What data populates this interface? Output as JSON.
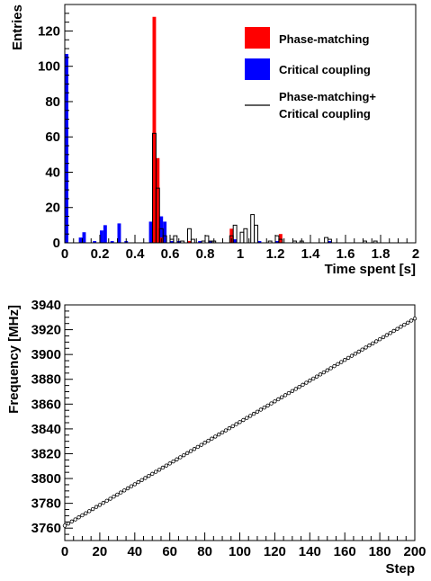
{
  "chart_data": [
    {
      "type": "bar",
      "xlabel": "Time spent [s]",
      "ylabel": "Entries",
      "xlim": [
        0,
        2
      ],
      "ylim": [
        0,
        135
      ],
      "xticks": [
        "0",
        "0.2",
        "0.4",
        "0.6",
        "0.8",
        "1",
        "1.2",
        "1.4",
        "1.6",
        "1.8",
        "2"
      ],
      "yticks": [
        "0",
        "20",
        "40",
        "60",
        "80",
        "100",
        "120"
      ],
      "legend_position": "top-right",
      "bin_width": 0.02,
      "series": [
        {
          "name": "Phase-matching",
          "style": "filled",
          "color": "#ff0000",
          "points": [
            [
              0.5,
              128
            ],
            [
              0.52,
              48
            ],
            [
              0.54,
              3
            ],
            [
              0.7,
              1
            ],
            [
              0.94,
              8
            ],
            [
              1.22,
              5
            ]
          ]
        },
        {
          "name": "Critical coupling",
          "style": "filled",
          "color": "#0000ff",
          "points": [
            [
              0.0,
              107
            ],
            [
              0.08,
              3
            ],
            [
              0.1,
              6
            ],
            [
              0.16,
              1
            ],
            [
              0.2,
              7
            ],
            [
              0.22,
              10
            ],
            [
              0.26,
              1
            ],
            [
              0.3,
              11
            ],
            [
              0.34,
              1
            ],
            [
              0.48,
              12
            ],
            [
              0.5,
              4
            ],
            [
              0.54,
              15
            ],
            [
              0.56,
              12
            ],
            [
              0.6,
              1
            ],
            [
              0.64,
              1
            ],
            [
              0.76,
              1
            ],
            [
              0.82,
              1
            ],
            [
              0.96,
              2
            ],
            [
              1.1,
              1
            ],
            [
              1.2,
              1
            ],
            [
              1.5,
              1
            ]
          ]
        },
        {
          "name": "Phase-matching+\nCritical coupling",
          "legend_lines": [
            "Phase-matching+",
            "Critical coupling"
          ],
          "style": "outline",
          "color": "#000000",
          "points": [
            [
              0.5,
              62
            ],
            [
              0.52,
              31
            ],
            [
              0.54,
              8
            ],
            [
              0.56,
              4
            ],
            [
              0.6,
              2
            ],
            [
              0.62,
              4
            ],
            [
              0.66,
              1
            ],
            [
              0.7,
              8
            ],
            [
              0.72,
              2
            ],
            [
              0.78,
              1
            ],
            [
              0.8,
              4
            ],
            [
              0.82,
              1
            ],
            [
              0.84,
              1
            ],
            [
              0.94,
              4
            ],
            [
              0.96,
              10
            ],
            [
              1.0,
              6
            ],
            [
              1.02,
              8
            ],
            [
              1.06,
              16
            ],
            [
              1.08,
              10
            ],
            [
              1.16,
              1
            ],
            [
              1.2,
              4
            ],
            [
              1.22,
              2
            ],
            [
              1.3,
              1
            ],
            [
              1.34,
              1
            ],
            [
              1.48,
              3
            ],
            [
              1.5,
              2
            ],
            [
              1.7,
              1
            ],
            [
              1.76,
              1
            ]
          ]
        }
      ]
    },
    {
      "type": "scatter",
      "xlabel": "Step",
      "ylabel": "Frequency [MHz]",
      "xlim": [
        0,
        200
      ],
      "ylim": [
        3750,
        3940
      ],
      "xticks": [
        "0",
        "20",
        "40",
        "60",
        "80",
        "100",
        "120",
        "140",
        "160",
        "180",
        "200"
      ],
      "yticks": [
        "3760",
        "3780",
        "3800",
        "3820",
        "3840",
        "3860",
        "3880",
        "3900",
        "3920",
        "3940"
      ],
      "series": [
        {
          "marker": "open-circle",
          "color": "#000000",
          "x_start": 0,
          "x_end": 200,
          "x_step": 2,
          "y_at_x_start": 3762,
          "y_at_x_end": 3929
        }
      ]
    }
  ]
}
